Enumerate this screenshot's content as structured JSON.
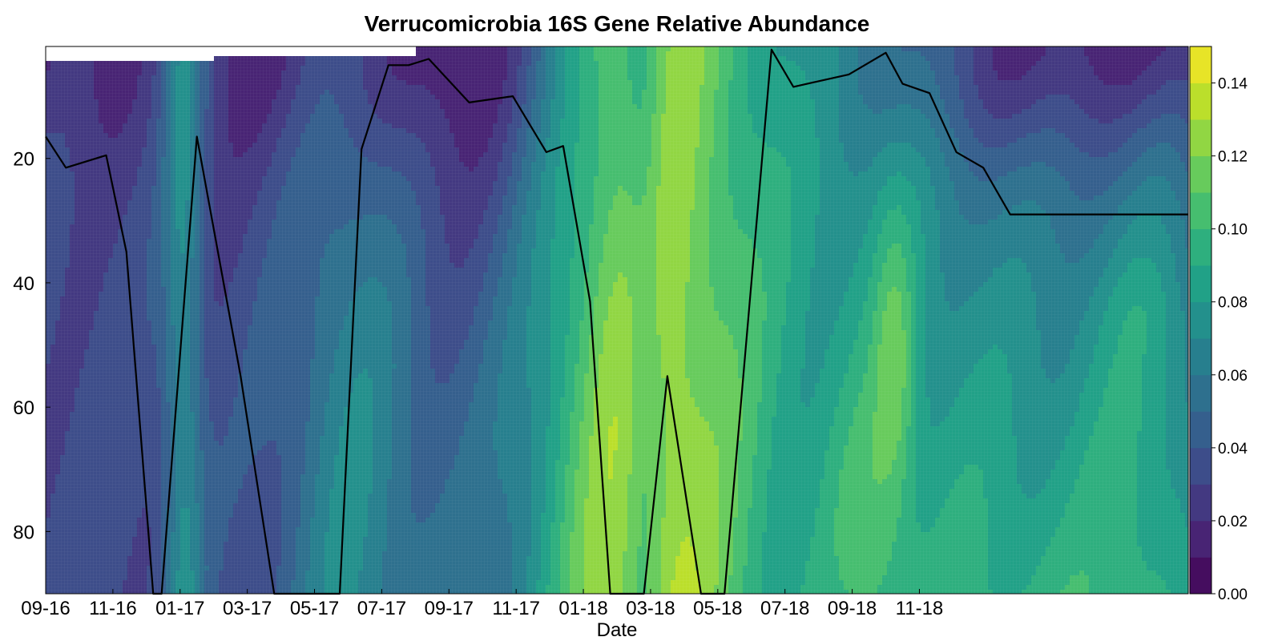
{
  "chart_data": {
    "type": "heatmap",
    "title": "Verrucomicrobia 16S Gene Relative Abundance",
    "xlabel": "Date",
    "ylabel": "",
    "x_ticks": [
      "09-16",
      "11-16",
      "01-17",
      "03-17",
      "05-17",
      "07-17",
      "09-17",
      "11-17",
      "01-18",
      "03-18",
      "05-18",
      "07-18",
      "09-18",
      "11-18"
    ],
    "y_ticks": [
      20,
      40,
      60,
      80
    ],
    "y_range": [
      2,
      90
    ],
    "y_inverted": true,
    "colorbar": {
      "min": 0.0,
      "max": 0.15,
      "tick_values": [
        0.0,
        0.02,
        0.04,
        0.06,
        0.08,
        0.1,
        0.12,
        0.14
      ],
      "tick_labels": [
        "0.00",
        "0.02",
        "0.04",
        "0.06",
        "0.08",
        "0.10",
        "0.12",
        "0.14"
      ],
      "levels": 15,
      "colormap": "viridis"
    },
    "surface_top_depth": [
      {
        "from": "09-16",
        "to": "02-17",
        "depth": 4.3
      },
      {
        "from": "02-17",
        "to": "08-17",
        "depth": 3.2
      },
      {
        "from": "08-17",
        "to": "02-18",
        "depth": 2.2
      },
      {
        "from": "02-18",
        "to": "11-18",
        "depth": 1.2
      }
    ],
    "grid": true,
    "legend": "none",
    "series": [
      {
        "type": "line",
        "color": "#000000",
        "x_month_index": [
          0,
          0.6,
          1.8,
          2.4,
          3.2,
          3.45,
          4.5,
          5.8,
          6.8,
          8.75,
          9.4,
          10.2,
          10.8,
          11.4,
          12.6,
          13.9,
          14.9,
          15.4,
          16.2,
          16.8,
          17.8,
          18.5,
          19.5,
          20.2,
          21.6,
          22.25,
          23.9,
          25.0,
          25.5,
          26.3,
          27.1,
          27.9,
          28.7,
          29.3,
          30.3,
          31.5,
          32.0,
          33.0,
          34.0
        ],
        "y": [
          16.5,
          21.5,
          19.5,
          35,
          90,
          90,
          16.5,
          55,
          90,
          90,
          18.5,
          5,
          5,
          4,
          11,
          10,
          19,
          18,
          43,
          90,
          90,
          55,
          90,
          90,
          2.5,
          8.5,
          6.5,
          3,
          8,
          9.5,
          19,
          21.5,
          29,
          29,
          29,
          29,
          29,
          29,
          29
        ]
      }
    ]
  }
}
